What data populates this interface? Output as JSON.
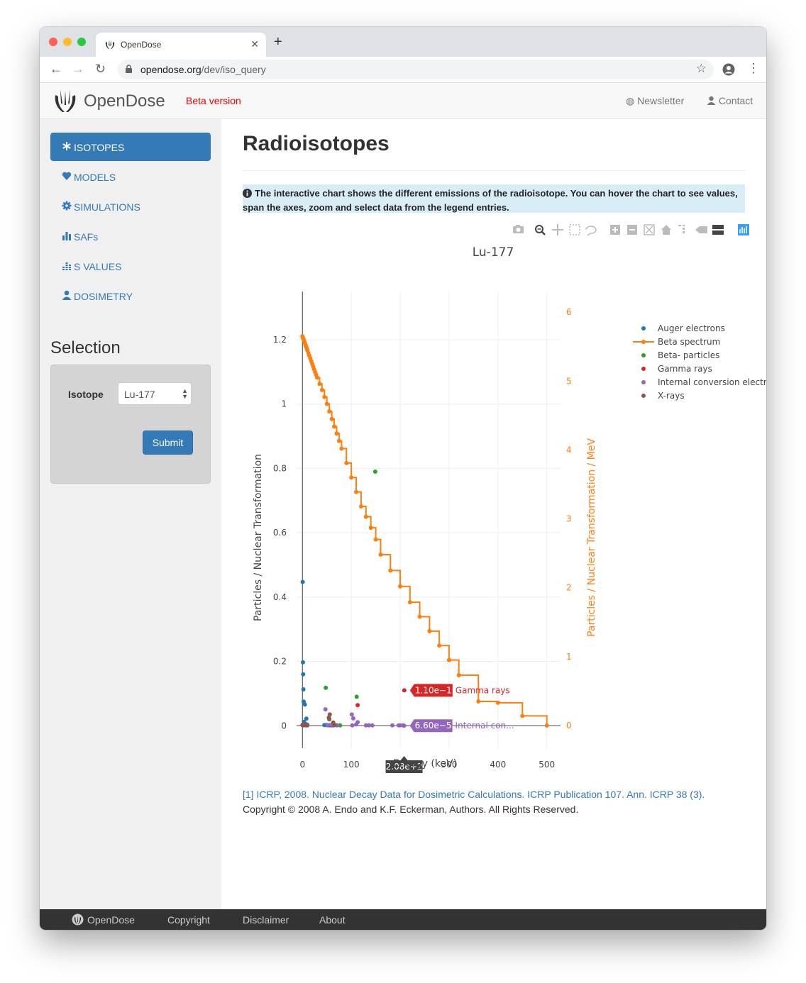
{
  "browser": {
    "tab_title": "OpenDose",
    "url_host": "opendose.org",
    "url_path": "/dev/iso_query"
  },
  "header": {
    "brand": "OpenDose",
    "beta": "Beta version",
    "newsletter": "Newsletter",
    "contact": "Contact"
  },
  "sidebar": {
    "items": [
      {
        "label": "ISOTOPES",
        "icon": "asterisk-icon"
      },
      {
        "label": "MODELS",
        "icon": "heart-icon"
      },
      {
        "label": "SIMULATIONS",
        "icon": "gear-icon"
      },
      {
        "label": "SAFs",
        "icon": "bar-chart-icon"
      },
      {
        "label": "S VALUES",
        "icon": "grid-chart-icon"
      },
      {
        "label": "DOSIMETRY",
        "icon": "user-icon"
      }
    ],
    "selection_title": "Selection",
    "isotope_label": "Isotope",
    "isotope_value": "Lu-177",
    "submit": "Submit"
  },
  "main": {
    "title": "Radioisotopes",
    "info": "The interactive chart shows the different emissions of the radioisotope. You can hover the chart to see values, span the axes, zoom and select data from the legend entries.",
    "reference": "[1] ICRP, 2008. Nuclear Decay Data for Dosimetric Calculations. ICRP Publication 107. Ann. ICRP 38 (3).",
    "copyright": "Copyright © 2008 A. Endo and K.F. Eckerman, Authors. All Rights Reserved."
  },
  "chart_data": {
    "type": "scatter",
    "title": "Lu-177",
    "xlabel": "Energy (keV)",
    "ylabel": "Particles / Nuclear Transformation",
    "y2label": "Particles / Nuclear Transformation / MeV",
    "xlim": [
      -12,
      528
    ],
    "ylim": [
      -0.07,
      1.35
    ],
    "y2lim": [
      -0.33,
      6.3
    ],
    "xticks": [
      "0",
      "100",
      "200",
      "300",
      "400",
      "500"
    ],
    "yticks": [
      "0",
      "0.2",
      "0.4",
      "0.6",
      "0.8",
      "1",
      "1.2"
    ],
    "y2ticks": [
      "0",
      "1",
      "2",
      "3",
      "4",
      "5",
      "6"
    ],
    "legend_position": "top-right",
    "series": [
      {
        "name": "Auger electrons",
        "color": "#1f77b4",
        "axis": "y",
        "x": [
          0.5,
          1,
          1.5,
          2,
          2.5,
          3,
          4,
          5,
          6,
          7,
          8,
          9,
          10,
          45,
          50,
          55,
          60,
          62
        ],
        "y": [
          0.447,
          0.197,
          0.16,
          0.113,
          0.075,
          0.012,
          0.004,
          0.066,
          0.006,
          0.003,
          0.022,
          0.003,
          0.003,
          0.002,
          0.002,
          0.001,
          0.001,
          0.001
        ]
      },
      {
        "name": "Beta spectrum",
        "color": "#ff7f0e",
        "axis": "y2",
        "mode": "lines+markers",
        "x": [
          0,
          1,
          2,
          3,
          4,
          5,
          6,
          7,
          8,
          9,
          10,
          12,
          14,
          16,
          18,
          20,
          22,
          24,
          26,
          28,
          30,
          35,
          40,
          45,
          50,
          55,
          60,
          65,
          70,
          75,
          80,
          90,
          100,
          110,
          120,
          130,
          140,
          150,
          160,
          180,
          200,
          220,
          240,
          260,
          280,
          300,
          320,
          360,
          400,
          450,
          500
        ],
        "y": [
          5.65,
          5.63,
          5.61,
          5.59,
          5.57,
          5.55,
          5.53,
          5.51,
          5.49,
          5.47,
          5.45,
          5.41,
          5.37,
          5.33,
          5.29,
          5.25,
          5.21,
          5.17,
          5.13,
          5.09,
          5.05,
          4.96,
          4.87,
          4.77,
          4.67,
          4.56,
          4.45,
          4.34,
          4.24,
          4.13,
          4.02,
          3.81,
          3.6,
          3.39,
          3.18,
          3.03,
          2.87,
          2.7,
          2.48,
          2.25,
          2.02,
          1.79,
          1.58,
          1.37,
          1.16,
          0.95,
          0.73,
          0.35,
          0.33,
          0.14,
          0.0
        ]
      },
      {
        "name": "Beta- particles",
        "color": "#2ca02c",
        "axis": "y",
        "x": [
          47.7,
          77,
          111,
          149
        ],
        "y": [
          0.118,
          0.001,
          0.09,
          0.79
        ]
      },
      {
        "name": "Gamma rays",
        "color": "#d62728",
        "axis": "y",
        "x": [
          112.9,
          208.4
        ],
        "y": [
          0.064,
          0.11
        ]
      },
      {
        "name": "Internal conversion electrons",
        "color": "#9467bd",
        "axis": "y",
        "x": [
          47,
          52,
          60,
          71,
          101,
          102,
          104,
          110,
          113,
          130,
          136,
          143,
          184,
          197,
          200,
          206,
          208
        ],
        "y": [
          0.051,
          0.001,
          0.003,
          0.001,
          0.035,
          0.001,
          0.023,
          0.004,
          0.011,
          0.001,
          0.001,
          0.001,
          0.001,
          0.001,
          0.001,
          0.001,
          7e-05
        ]
      },
      {
        "name": "X-rays",
        "color": "#8c564b",
        "axis": "y",
        "x": [
          0,
          1,
          2,
          3,
          4,
          5,
          6,
          7,
          8,
          9,
          10,
          54,
          55,
          56,
          63,
          66
        ],
        "y": [
          0.002,
          0.004,
          0.001,
          0.002,
          0.003,
          0.002,
          0.004,
          0.001,
          0.003,
          0.002,
          0.001,
          0.025,
          0.02,
          0.035,
          0.01,
          0.002
        ]
      }
    ],
    "hover_labels": [
      {
        "series": "Gamma rays",
        "x": 208.4,
        "y": 0.11,
        "text": "1.10e−1",
        "name": "Gamma rays"
      },
      {
        "series": "Internal conversion electrons",
        "x": 208,
        "y": 7e-05,
        "text": "6.60e−5",
        "name": "Internal con..."
      }
    ],
    "x_hover_label": {
      "x": 208,
      "text": "2.08e+2"
    }
  },
  "footer": {
    "brand": "OpenDose",
    "links": [
      "Copyright",
      "Disclaimer",
      "About"
    ]
  }
}
